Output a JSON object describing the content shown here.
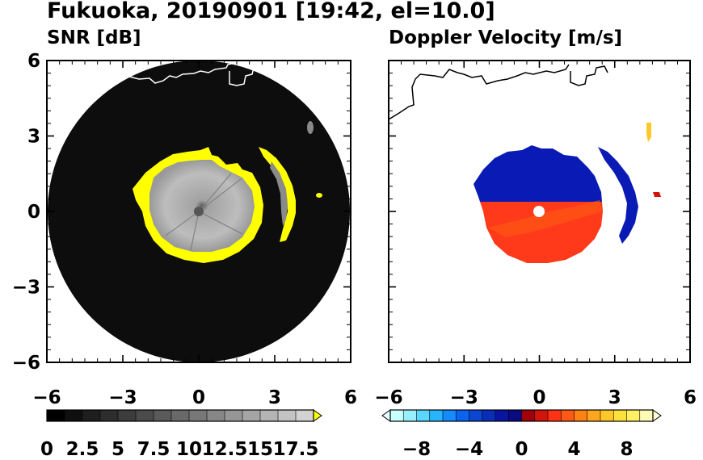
{
  "title": "Fukuoka, 20190901 [19:42, el=10.0]",
  "colors": {
    "frame": "#000000",
    "snr_background": "#0d0d0d",
    "snr_echo": "#9a9a9a",
    "snr_ring": "#ffff00",
    "coast_snr": "#ffffff",
    "coast_doppler": "#000000",
    "approach_blue": "#0a1ab4",
    "recede_red": "#ff3a1a"
  },
  "chart_data": [
    {
      "type": "heatmap",
      "name": "snr",
      "subtitle": "SNR [dB]",
      "xlim": [
        -6,
        6
      ],
      "ylim": [
        -6,
        6
      ],
      "xticks": [
        -6,
        -3,
        0,
        3,
        6
      ],
      "yticks": [
        -6,
        -3,
        0,
        3,
        6
      ],
      "xtick_labels": [
        "−6",
        "−3",
        "0",
        "3",
        "6"
      ],
      "ytick_labels": [
        "−6",
        "−3",
        "0",
        "3",
        "6"
      ],
      "colorbar": {
        "min": 0,
        "max": 18.75,
        "step": 1.25,
        "extend": "max",
        "tick_labels": [
          "0",
          "2.5",
          "5",
          "7.5",
          "10",
          "12.5",
          "15",
          "17.5"
        ],
        "tick_values": [
          0,
          2.5,
          5,
          7.5,
          10,
          12.5,
          15,
          17.5
        ],
        "colors": [
          "#000000",
          "#0f0f0f",
          "#1e1e1e",
          "#2d2d2d",
          "#3c3c3c",
          "#4b4b4b",
          "#5a5a5a",
          "#696969",
          "#787878",
          "#878787",
          "#969696",
          "#a5a5a5",
          "#b4b4b4",
          "#c3c3c3",
          "#d2d2d2"
        ],
        "extend_color": "#ffff00"
      }
    },
    {
      "type": "heatmap",
      "name": "doppler",
      "subtitle": "Doppler Velocity [m/s]",
      "xlim": [
        -6,
        6
      ],
      "ylim": [
        -6,
        6
      ],
      "xticks": [
        -6,
        -3,
        0,
        3,
        6
      ],
      "yticks": [
        -6,
        -3,
        0,
        3,
        6
      ],
      "xtick_labels": [
        "−6",
        "−3",
        "0",
        "3",
        "6"
      ],
      "ytick_labels": [
        "−6",
        "−3",
        "0",
        "3",
        "6"
      ],
      "colorbar": {
        "min": -10,
        "max": 10,
        "step": 1,
        "extend": "both",
        "tick_labels": [
          "−8",
          "−4",
          "0",
          "4",
          "8"
        ],
        "tick_values": [
          -8,
          -4,
          0,
          4,
          8
        ],
        "colors": [
          "#c8ffff",
          "#96f0ff",
          "#5ad7ff",
          "#28b4ff",
          "#148cff",
          "#0a64f0",
          "#0a46d2",
          "#0a2db9",
          "#0a14a0",
          "#0a0a82",
          "#a0000a",
          "#d2140a",
          "#ff3214",
          "#ff5a14",
          "#ff8214",
          "#ffa51e",
          "#ffc828",
          "#ffe13c",
          "#fff064",
          "#fffab4"
        ],
        "extend_low_color": "#e6ffff",
        "extend_high_color": "#ffffd2"
      }
    }
  ]
}
